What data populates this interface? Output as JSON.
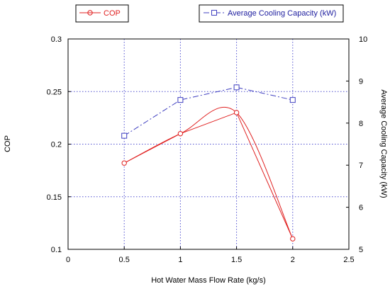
{
  "chart_data": {
    "type": "line",
    "x": [
      0.5,
      1,
      1.5,
      2
    ],
    "xlabel": "Hot Water Mass Flow Rate (kg/s)",
    "xlim": [
      0,
      2.5
    ],
    "xticks": [
      "0",
      "0.5",
      "1",
      "1.5",
      "2",
      "2.5"
    ],
    "ylabel": "COP",
    "ylim": [
      0.1,
      0.3
    ],
    "yticks": [
      "0.1",
      "0.15",
      "0.2",
      "0.25",
      "0.3"
    ],
    "y2label": "Average Cooling Capacity (kW)",
    "y2lim": [
      5,
      10
    ],
    "y2ticks": [
      "5",
      "6",
      "7",
      "8",
      "9",
      "10"
    ],
    "grid": true,
    "series": [
      {
        "name": "COP",
        "axis": "left",
        "values": [
          0.182,
          0.21,
          0.23,
          0.11
        ],
        "color": "#e02020",
        "marker": "circle",
        "line": "solid"
      },
      {
        "name": "Average Cooling Capacity (kW)",
        "axis": "right",
        "values": [
          7.7,
          8.55,
          8.85,
          8.55
        ],
        "color": "#4040c0",
        "marker": "square",
        "line": "dash-dot"
      }
    ],
    "legend_position": "top"
  }
}
